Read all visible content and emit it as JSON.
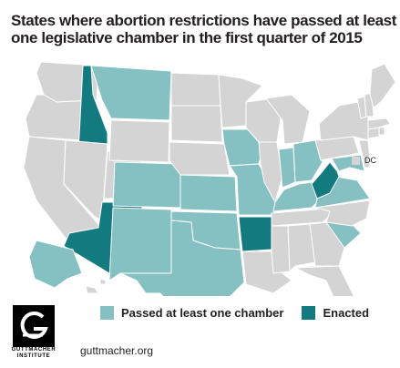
{
  "title": {
    "line1": "States where abortion restrictions have passed at least",
    "line2": "one legislative chamber in the first quarter of 2015"
  },
  "colors": {
    "background": "#ffffff",
    "not_passed": "#d4d4d4",
    "passed_chamber": "#85c0c2",
    "enacted": "#137a80",
    "border": "#ffffff",
    "text": "#231f20"
  },
  "legend": {
    "passed_label": "Passed at least one chamber",
    "enacted_label": "Enacted",
    "dc_label": "DC"
  },
  "map_data": {
    "passed_at_least_one_chamber": [
      "MT",
      "CO",
      "NM",
      "TX",
      "KS",
      "OK",
      "IA",
      "MO",
      "IN",
      "OH",
      "KY",
      "SC",
      "VA",
      "MD",
      "AK"
    ],
    "enacted": [
      "ID",
      "AZ",
      "AR",
      "WV"
    ],
    "dc": "not_passed"
  },
  "logo": {
    "line1": "GUTTMACHER",
    "line2": "INSTITUTE"
  },
  "footer": {
    "website": "guttmacher.org"
  }
}
